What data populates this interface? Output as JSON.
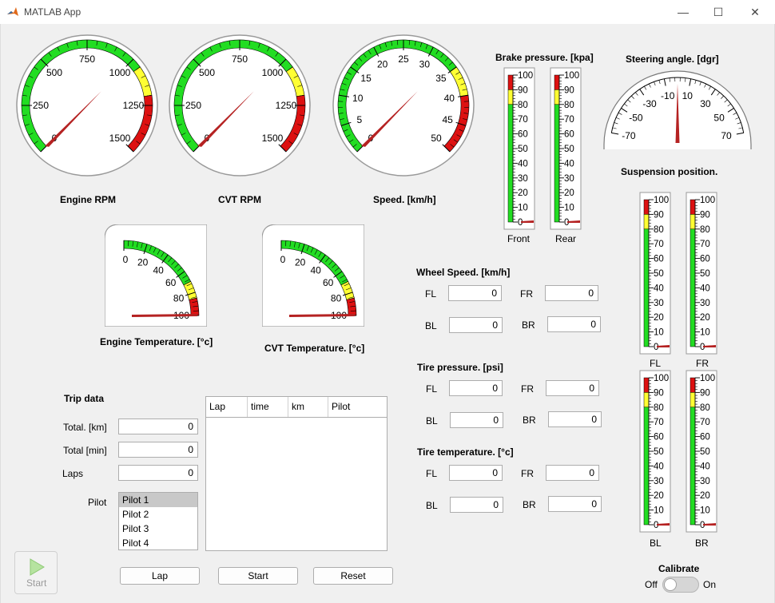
{
  "window": {
    "title": "MATLAB App",
    "minimize": "—",
    "maximize": "☐",
    "close": "✕"
  },
  "gauges": {
    "engine_rpm": {
      "label": "Engine RPM",
      "ticks": [
        "0",
        "250",
        "500",
        "750",
        "1000",
        "1250",
        "1500"
      ],
      "value": 0
    },
    "cvt_rpm": {
      "label": "CVT RPM",
      "ticks": [
        "0",
        "250",
        "500",
        "750",
        "1000",
        "1250",
        "1500"
      ],
      "value": 0
    },
    "speed": {
      "label": "Speed. [km/h]",
      "ticks": [
        "0",
        "5",
        "10",
        "15",
        "20",
        "25",
        "30",
        "35",
        "40",
        "45",
        "50"
      ],
      "value": 0
    },
    "engine_temp": {
      "label": "Engine Temperature. [°c]",
      "ticks": [
        "0",
        "20",
        "40",
        "60",
        "80",
        "100"
      ],
      "value": 0
    },
    "cvt_temp": {
      "label": "CVT Temperature. [°c]",
      "ticks": [
        "0",
        "20",
        "40",
        "60",
        "80",
        "100"
      ],
      "value": 0
    },
    "steering": {
      "label": "Steering angle. [dgr]",
      "ticks": [
        "-70",
        "-50",
        "-30",
        "-10",
        "10",
        "30",
        "50",
        "70"
      ],
      "value": 0
    }
  },
  "brake": {
    "label": "Brake pressure. [kpa]",
    "ticks": [
      "100",
      "90",
      "80",
      "70",
      "60",
      "50",
      "40",
      "30",
      "20",
      "10",
      "0"
    ],
    "front": "Front",
    "rear": "Rear"
  },
  "suspension": {
    "label": "Suspension position.",
    "ticks": [
      "100",
      "90",
      "80",
      "70",
      "60",
      "50",
      "40",
      "30",
      "20",
      "10",
      "0"
    ],
    "fl": "FL",
    "fr": "FR",
    "bl": "BL",
    "br": "BR"
  },
  "wheel_speed": {
    "label": "Wheel Speed. [km/h]",
    "fl_label": "FL",
    "fr_label": "FR",
    "bl_label": "BL",
    "br_label": "BR",
    "fl": "0",
    "fr": "0",
    "bl": "0",
    "br": "0"
  },
  "tire_pressure": {
    "label": "Tire pressure. [psi]",
    "fl_label": "FL",
    "fr_label": "FR",
    "bl_label": "BL",
    "br_label": "BR",
    "fl": "0",
    "fr": "0",
    "bl": "0",
    "br": "0"
  },
  "tire_temp": {
    "label": "Tire temperature. [°c]",
    "fl_label": "FL",
    "fr_label": "FR",
    "bl_label": "BL",
    "br_label": "BR",
    "fl": "0",
    "fr": "0",
    "bl": "0",
    "br": "0"
  },
  "trip": {
    "label": "Trip data",
    "total_km_label": "Total. [km]",
    "total_km": "0",
    "total_min_label": "Total [min]",
    "total_min": "0",
    "laps_label": "Laps",
    "laps": "0",
    "pilot_label": "Pilot",
    "pilots": [
      "Pilot 1",
      "Pilot 2",
      "Pilot 3",
      "Pilot 4"
    ]
  },
  "table": {
    "columns": [
      "Lap",
      "time",
      "km",
      "Pilot"
    ]
  },
  "buttons": {
    "lap": "Lap",
    "start": "Start",
    "reset": "Reset",
    "start_big": "Start"
  },
  "calibrate": {
    "label": "Calibrate",
    "off": "Off",
    "on": "On",
    "state": "off"
  }
}
